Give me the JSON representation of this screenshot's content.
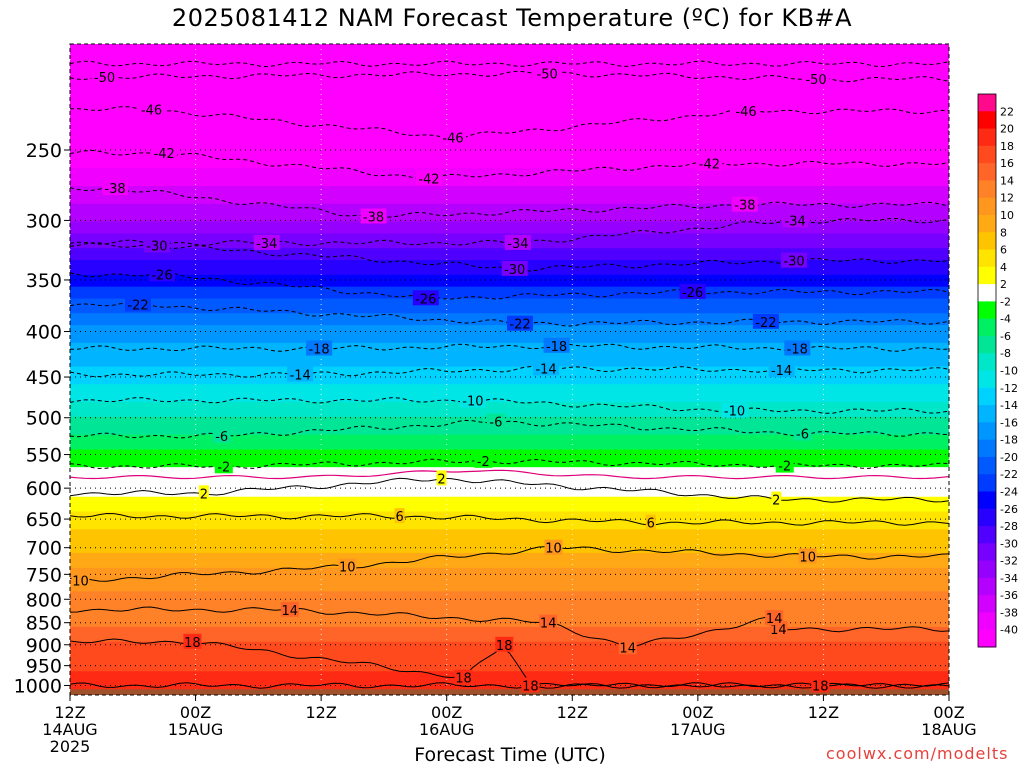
{
  "title": "2025081412 NAM Forecast Temperature (ºC) for KB#A",
  "xlabel": "Forecast Time (UTC)",
  "credit": "coolwx.com/modelts",
  "chart_data": {
    "type": "heatmap",
    "title": "2025081412 NAM Forecast Temperature (ºC) for KB#A",
    "xlabel": "Forecast Time (UTC)",
    "ylabel": "",
    "y_scale": "log-pressure (hPa), reversed",
    "x_range_hours": [
      0,
      84
    ],
    "y_range_hpa": [
      1025,
      190
    ],
    "y_ticks": [
      250,
      300,
      350,
      400,
      450,
      500,
      550,
      600,
      650,
      700,
      750,
      800,
      850,
      900,
      950,
      1000
    ],
    "x_ticks": [
      {
        "hour": 0,
        "line1": "12Z",
        "line2": "14AUG",
        "line3": "2025"
      },
      {
        "hour": 12,
        "line1": "00Z",
        "line2": "15AUG",
        "line3": ""
      },
      {
        "hour": 24,
        "line1": "12Z",
        "line2": "",
        "line3": ""
      },
      {
        "hour": 36,
        "line1": "00Z",
        "line2": "16AUG",
        "line3": ""
      },
      {
        "hour": 48,
        "line1": "12Z",
        "line2": "",
        "line3": ""
      },
      {
        "hour": 60,
        "line1": "00Z",
        "line2": "17AUG",
        "line3": ""
      },
      {
        "hour": 72,
        "line1": "12Z",
        "line2": "",
        "line3": ""
      },
      {
        "hour": 84,
        "line1": "00Z",
        "line2": "18AUG",
        "line3": ""
      }
    ],
    "temperature_profile_initial": [
      {
        "p": 1000,
        "t": 19
      },
      {
        "p": 950,
        "t": 17.5
      },
      {
        "p": 900,
        "t": 16.5
      },
      {
        "p": 850,
        "t": 13.5
      },
      {
        "p": 800,
        "t": 12.5
      },
      {
        "p": 750,
        "t": 11
      },
      {
        "p": 700,
        "t": 7.5
      },
      {
        "p": 650,
        "t": 5
      },
      {
        "p": 600,
        "t": 1
      },
      {
        "p": 550,
        "t": -3.5
      },
      {
        "p": 500,
        "t": -8
      },
      {
        "p": 450,
        "t": -13
      },
      {
        "p": 400,
        "t": -17
      },
      {
        "p": 350,
        "t": -25
      },
      {
        "p": 300,
        "t": -34
      },
      {
        "p": 250,
        "t": -42
      },
      {
        "p": 200,
        "t": -51
      }
    ],
    "surface_pressure_hpa": 1010,
    "colorbar": {
      "labels": [
        22,
        20,
        18,
        16,
        14,
        12,
        10,
        8,
        6,
        4,
        2,
        -2,
        -4,
        -6,
        -8,
        -10,
        -12,
        -14,
        -16,
        -18,
        -20,
        -22,
        -24,
        -26,
        -28,
        -30,
        -32,
        -34,
        -36,
        -38,
        -40
      ],
      "colors": [
        "#ff0a8c",
        "#ff0000",
        "#ff2a14",
        "#ff4a1e",
        "#ff6428",
        "#ff8228",
        "#ff961e",
        "#ffaa14",
        "#ffc400",
        "#ffe400",
        "#ffff00",
        "#ffffff",
        "#00ff00",
        "#00f064",
        "#00e696",
        "#00e6c8",
        "#00e6e6",
        "#00d2ff",
        "#00b4ff",
        "#0096ff",
        "#0078ff",
        "#005aff",
        "#003cff",
        "#0000ff",
        "#2800ff",
        "#5000ff",
        "#7800ff",
        "#9600ff",
        "#b400ff",
        "#d200ff",
        "#f000ff",
        "#ff00ff"
      ]
    },
    "contour_labels": [
      {
        "t": -50,
        "hour": 3.3,
        "p": 207
      },
      {
        "t": -50,
        "hour": 45.6,
        "p": 205
      },
      {
        "t": -50,
        "hour": 71.3,
        "p": 208
      },
      {
        "t": -46,
        "hour": 7.8,
        "p": 225
      },
      {
        "t": -46,
        "hour": 36.6,
        "p": 242
      },
      {
        "t": -46,
        "hour": 64.6,
        "p": 226
      },
      {
        "t": -42,
        "hour": 9,
        "p": 252
      },
      {
        "t": -42,
        "hour": 34.3,
        "p": 269
      },
      {
        "t": -42,
        "hour": 61.1,
        "p": 259
      },
      {
        "t": -38,
        "hour": 4.3,
        "p": 276
      },
      {
        "t": -38,
        "hour": 29,
        "p": 297
      },
      {
        "t": -38,
        "hour": 64.5,
        "p": 288
      },
      {
        "t": -34,
        "hour": 18.8,
        "p": 318
      },
      {
        "t": -34,
        "hour": 42.8,
        "p": 318
      },
      {
        "t": -34,
        "hour": 69.3,
        "p": 300
      },
      {
        "t": -30,
        "hour": 8.3,
        "p": 320
      },
      {
        "t": -30,
        "hour": 42.5,
        "p": 340
      },
      {
        "t": -30,
        "hour": 69.2,
        "p": 333
      },
      {
        "t": -26,
        "hour": 8.8,
        "p": 345
      },
      {
        "t": -26,
        "hour": 34,
        "p": 367
      },
      {
        "t": -26,
        "hour": 59.5,
        "p": 361
      },
      {
        "t": -22,
        "hour": 6.5,
        "p": 373
      },
      {
        "t": -22,
        "hour": 43,
        "p": 392
      },
      {
        "t": -22,
        "hour": 66.5,
        "p": 390
      },
      {
        "t": -18,
        "hour": 23.8,
        "p": 418
      },
      {
        "t": -18,
        "hour": 46.5,
        "p": 415
      },
      {
        "t": -18,
        "hour": 69.5,
        "p": 418
      },
      {
        "t": -14,
        "hour": 22,
        "p": 447
      },
      {
        "t": -14,
        "hour": 45.5,
        "p": 440
      },
      {
        "t": -14,
        "hour": 68,
        "p": 442
      },
      {
        "t": -10,
        "hour": 38.5,
        "p": 478
      },
      {
        "t": -10,
        "hour": 63.5,
        "p": 491
      },
      {
        "t": -6,
        "hour": 40.7,
        "p": 505
      },
      {
        "t": -6,
        "hour": 14.5,
        "p": 524
      },
      {
        "t": -6,
        "hour": 70,
        "p": 521
      },
      {
        "t": -2,
        "hour": 14.7,
        "p": 567
      },
      {
        "t": -2,
        "hour": 39.5,
        "p": 559
      },
      {
        "t": -2,
        "hour": 68.3,
        "p": 566
      },
      {
        "t": 2,
        "hour": 12.8,
        "p": 608
      },
      {
        "t": 2,
        "hour": 35.5,
        "p": 585
      },
      {
        "t": 2,
        "hour": 67.5,
        "p": 618
      },
      {
        "t": 6,
        "hour": 31.5,
        "p": 645
      },
      {
        "t": 6,
        "hour": 55.5,
        "p": 656
      },
      {
        "t": 10,
        "hour": 1,
        "p": 762
      },
      {
        "t": 10,
        "hour": 26.5,
        "p": 735
      },
      {
        "t": 10,
        "hour": 46.2,
        "p": 700
      },
      {
        "t": 10,
        "hour": 70.5,
        "p": 716
      },
      {
        "t": 14,
        "hour": 21,
        "p": 822
      },
      {
        "t": 14,
        "hour": 45.7,
        "p": 850
      },
      {
        "t": 14,
        "hour": 67.7,
        "p": 864
      },
      {
        "t": 14,
        "hour": 67.3,
        "p": 840
      },
      {
        "t": 14,
        "hour": 53.3,
        "p": 906
      },
      {
        "t": 18,
        "hour": 11.7,
        "p": 893
      },
      {
        "t": 18,
        "hour": 41.5,
        "p": 900
      },
      {
        "t": 18,
        "hour": 37.6,
        "p": 980
      },
      {
        "t": 18,
        "hour": 44,
        "p": 1000
      },
      {
        "t": 18,
        "hour": 71.7,
        "p": 1000
      }
    ]
  }
}
